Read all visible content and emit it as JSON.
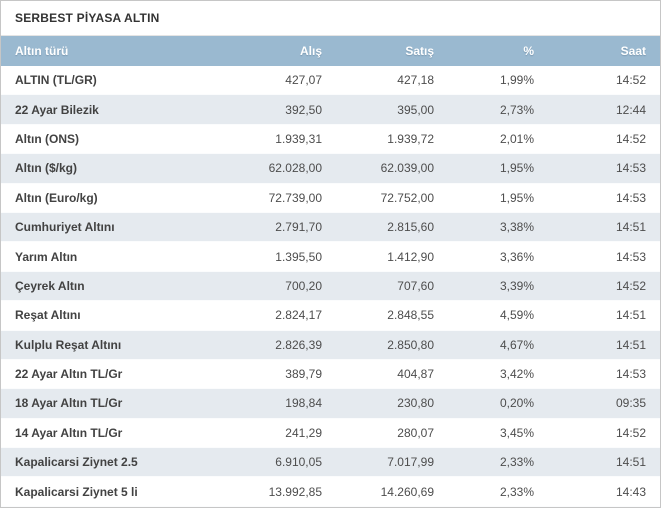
{
  "widget": {
    "title": "SERBEST PİYASA ALTIN"
  },
  "colors": {
    "header_bg": "#9ab9d0",
    "header_text": "#ffffff",
    "row_alt_bg": "#e5eaef",
    "row_bg": "#ffffff",
    "label_text": "#424242",
    "value_text": "#4d4d4d",
    "border": "#c6c6c6"
  },
  "table": {
    "columns": [
      "Altın türü",
      "Alış",
      "Satış",
      "%",
      "Saat"
    ],
    "rows": [
      {
        "tur": "ALTIN (TL/GR)",
        "alis": "427,07",
        "satis": "427,18",
        "pct": "1,99%",
        "saat": "14:52"
      },
      {
        "tur": "22 Ayar Bilezik",
        "alis": "392,50",
        "satis": "395,00",
        "pct": "2,73%",
        "saat": "12:44"
      },
      {
        "tur": "Altın (ONS)",
        "alis": "1.939,31",
        "satis": "1.939,72",
        "pct": "2,01%",
        "saat": "14:52"
      },
      {
        "tur": "Altın ($/kg)",
        "alis": "62.028,00",
        "satis": "62.039,00",
        "pct": "1,95%",
        "saat": "14:53"
      },
      {
        "tur": "Altın (Euro/kg)",
        "alis": "72.739,00",
        "satis": "72.752,00",
        "pct": "1,95%",
        "saat": "14:53"
      },
      {
        "tur": "Cumhuriyet Altını",
        "alis": "2.791,70",
        "satis": "2.815,60",
        "pct": "3,38%",
        "saat": "14:51"
      },
      {
        "tur": "Yarım Altın",
        "alis": "1.395,50",
        "satis": "1.412,90",
        "pct": "3,36%",
        "saat": "14:53"
      },
      {
        "tur": "Çeyrek Altın",
        "alis": "700,20",
        "satis": "707,60",
        "pct": "3,39%",
        "saat": "14:52"
      },
      {
        "tur": "Reşat Altını",
        "alis": "2.824,17",
        "satis": "2.848,55",
        "pct": "4,59%",
        "saat": "14:51"
      },
      {
        "tur": "Kulplu Reşat Altını",
        "alis": "2.826,39",
        "satis": "2.850,80",
        "pct": "4,67%",
        "saat": "14:51"
      },
      {
        "tur": "22 Ayar Altın TL/Gr",
        "alis": "389,79",
        "satis": "404,87",
        "pct": "3,42%",
        "saat": "14:53"
      },
      {
        "tur": "18 Ayar Altın TL/Gr",
        "alis": "198,84",
        "satis": "230,80",
        "pct": "0,20%",
        "saat": "09:35"
      },
      {
        "tur": "14 Ayar Altın TL/Gr",
        "alis": "241,29",
        "satis": "280,07",
        "pct": "3,45%",
        "saat": "14:52"
      },
      {
        "tur": "Kapalicarsi Ziynet 2.5",
        "alis": "6.910,05",
        "satis": "7.017,99",
        "pct": "2,33%",
        "saat": "14:51"
      },
      {
        "tur": "Kapalicarsi Ziynet 5 li",
        "alis": "13.992,85",
        "satis": "14.260,69",
        "pct": "2,33%",
        "saat": "14:43"
      }
    ]
  }
}
